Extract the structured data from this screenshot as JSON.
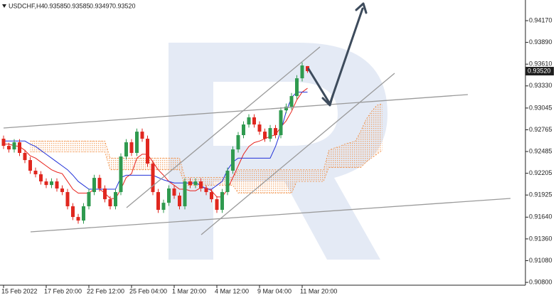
{
  "chart_data": {
    "type": "candlestick",
    "symbol": "USDCHF,H4",
    "header_values": [
      "0.93585",
      "0.93585",
      "0.93497",
      "0.93520"
    ],
    "categories": [
      "15 Feb 2022",
      null,
      null,
      null,
      null,
      null,
      null,
      null,
      "17 Feb 20:00",
      null,
      null,
      null,
      null,
      null,
      null,
      null,
      "22 Feb 12:00",
      null,
      null,
      null,
      null,
      null,
      null,
      null,
      "25 Feb 04:00",
      null,
      null,
      null,
      null,
      null,
      null,
      null,
      "1 Mar 20:00",
      null,
      null,
      null,
      null,
      null,
      null,
      null,
      "4 Mar 12:00",
      null,
      null,
      null,
      null,
      null,
      null,
      null,
      "9 Mar 04:00",
      null,
      null,
      null,
      null,
      null,
      null,
      null,
      "11 Mar 20:00",
      null,
      null,
      null,
      null,
      null,
      null,
      null,
      null,
      null,
      null,
      null,
      null,
      null,
      null,
      null
    ],
    "open": [
      0.9265,
      0.92558,
      0.92512,
      0.92604,
      0.92467,
      0.92375,
      0.92238,
      0.92192,
      0.921,
      0.92054,
      0.921,
      0.92009,
      0.91963,
      0.9178,
      0.91642,
      0.91596,
      0.9178,
      0.91963,
      0.92146,
      0.92009,
      0.91871,
      0.9178,
      0.91963,
      0.92421,
      0.92604,
      0.92467,
      0.92741,
      0.9265,
      0.92329,
      0.91963,
      0.91734,
      0.91825,
      0.92009,
      0.91917,
      0.9178,
      0.921,
      0.92054,
      0.921,
      0.92009,
      0.91963,
      0.91871,
      0.91734,
      0.91963,
      0.92238,
      0.92512,
      0.92696,
      0.92833,
      0.92925,
      0.92833,
      0.92741,
      0.9265,
      0.92787,
      0.92696,
      0.93016,
      0.93062,
      0.93199,
      0.93428,
      0.93585,
      null,
      null,
      null,
      null,
      null,
      null,
      null,
      null,
      null,
      null,
      null,
      null,
      null,
      null
    ],
    "high": [
      0.9269,
      0.92598,
      0.92644,
      0.92644,
      0.92507,
      0.92415,
      0.92278,
      0.92232,
      0.9214,
      0.9214,
      0.9214,
      0.92049,
      0.92003,
      0.9182,
      0.91682,
      0.9182,
      0.92003,
      0.92186,
      0.92186,
      0.92049,
      0.91911,
      0.92003,
      0.92461,
      0.92644,
      0.92644,
      0.92781,
      0.92781,
      0.9269,
      0.92369,
      0.92003,
      0.91865,
      0.92049,
      0.92049,
      0.91957,
      0.9214,
      0.9214,
      0.9214,
      0.9214,
      0.92049,
      0.92003,
      0.91911,
      0.92003,
      0.92278,
      0.92552,
      0.92736,
      0.92873,
      0.92965,
      0.92965,
      0.92873,
      0.92781,
      0.92827,
      0.92827,
      0.93056,
      0.93102,
      0.93239,
      0.93468,
      0.93633,
      0.93585,
      null,
      null,
      null,
      null,
      null,
      null,
      null,
      null,
      null,
      null,
      null,
      null,
      null,
      null
    ],
    "low": [
      0.92518,
      0.92472,
      0.92472,
      0.92427,
      0.92335,
      0.92198,
      0.92152,
      0.9206,
      0.92014,
      0.92014,
      0.91969,
      0.91923,
      0.9174,
      0.91602,
      0.91556,
      0.91556,
      0.9174,
      0.91923,
      0.91969,
      0.91831,
      0.9174,
      0.9174,
      0.91923,
      0.92381,
      0.92427,
      0.92427,
      0.9261,
      0.92289,
      0.91923,
      0.91694,
      0.91694,
      0.91785,
      0.91877,
      0.9174,
      0.9174,
      0.92014,
      0.92014,
      0.91969,
      0.91923,
      0.91831,
      0.91694,
      0.91694,
      0.91923,
      0.92198,
      0.92472,
      0.92656,
      0.92793,
      0.92793,
      0.92701,
      0.9261,
      0.9261,
      0.92656,
      0.92656,
      0.92976,
      0.93022,
      0.93159,
      0.93388,
      0.93497,
      null,
      null,
      null,
      null,
      null,
      null,
      null,
      null,
      null,
      null,
      null,
      null,
      null,
      null
    ],
    "close": [
      0.92558,
      0.92512,
      0.92604,
      0.92467,
      0.92375,
      0.92238,
      0.92192,
      0.921,
      0.92054,
      0.921,
      0.92009,
      0.91963,
      0.9178,
      0.91642,
      0.91596,
      0.9178,
      0.91963,
      0.92146,
      0.92009,
      0.91871,
      0.9178,
      0.91963,
      0.92421,
      0.92604,
      0.92467,
      0.92741,
      0.9265,
      0.92329,
      0.91963,
      0.91734,
      0.91825,
      0.92009,
      0.91917,
      0.9178,
      0.921,
      0.92054,
      0.921,
      0.92009,
      0.91963,
      0.91871,
      0.91734,
      0.91963,
      0.92238,
      0.92512,
      0.92696,
      0.92833,
      0.92925,
      0.92833,
      0.92741,
      0.9265,
      0.92787,
      0.92696,
      0.93016,
      0.93062,
      0.93199,
      0.93428,
      0.93593,
      0.9352,
      null,
      null,
      null,
      null,
      null,
      null,
      null,
      null,
      null,
      null,
      null,
      null,
      null,
      null
    ],
    "up_color": "#2f9a4f",
    "down_color": "#e0271f",
    "lines": [
      {
        "color": "#e8231c",
        "values": [
          0.9258,
          0.9258,
          0.9256,
          0.9255,
          0.925,
          0.9243,
          0.924,
          0.9235,
          0.923,
          0.9225,
          0.9222,
          0.922,
          0.921,
          0.92,
          0.9195,
          0.9195,
          0.9195,
          0.92,
          0.92,
          0.9195,
          0.9188,
          0.9188,
          0.92,
          0.9215,
          0.922,
          0.924,
          0.9245,
          0.9245,
          0.9235,
          0.9225,
          0.9218,
          0.921,
          0.9205,
          0.92,
          0.92,
          0.9198,
          0.9198,
          0.9202,
          0.9202,
          0.9198,
          0.919,
          0.919,
          0.92,
          0.9215,
          0.923,
          0.9245,
          0.9255,
          0.926,
          0.9262,
          0.9265,
          0.9268,
          0.927,
          0.928,
          0.9288,
          0.93,
          0.9315,
          0.9325,
          0.933,
          null,
          null,
          null,
          null,
          null,
          null,
          null,
          null,
          null,
          null,
          null,
          null,
          null,
          null
        ]
      },
      {
        "color": "#2232d8",
        "values": [
          0.9262,
          0.9262,
          0.9262,
          0.9262,
          0.9262,
          0.9258,
          0.9255,
          0.925,
          0.9245,
          0.924,
          0.9235,
          0.923,
          0.9225,
          0.9218,
          0.921,
          0.9205,
          0.92,
          0.92,
          0.92,
          0.92,
          0.92,
          0.92,
          0.9215,
          0.9218,
          0.9218,
          0.9218,
          0.9218,
          0.9218,
          0.9218,
          0.9215,
          0.9212,
          0.921,
          0.9208,
          0.9208,
          0.9208,
          0.9208,
          0.9208,
          0.9205,
          0.92,
          0.92,
          0.9205,
          0.921,
          0.9225,
          0.9235,
          0.924,
          0.924,
          0.924,
          0.924,
          0.924,
          0.924,
          0.924,
          0.9255,
          0.9275,
          0.93,
          0.9318,
          0.9325,
          0.9325,
          0.9325,
          null,
          null,
          null,
          null,
          null,
          null,
          null,
          null,
          null,
          null,
          null,
          null,
          null,
          null
        ]
      }
    ],
    "cloud": {
      "color": "#f08a3c",
      "span_a": [
        null,
        null,
        null,
        null,
        null,
        0.9262,
        0.9262,
        0.9262,
        0.9262,
        0.9262,
        0.9262,
        0.9262,
        0.9262,
        0.9262,
        0.9262,
        0.9262,
        0.9262,
        0.9262,
        0.9262,
        0.9262,
        0.924,
        0.924,
        0.924,
        0.924,
        0.924,
        0.924,
        0.924,
        0.924,
        0.924,
        0.924,
        0.924,
        0.924,
        0.924,
        0.924,
        0.9215,
        0.9215,
        0.9215,
        0.9215,
        0.9215,
        0.9215,
        0.9215,
        0.9215,
        0.9215,
        0.9215,
        0.9225,
        0.9225,
        0.9225,
        0.9225,
        0.9225,
        0.9225,
        0.9225,
        0.9225,
        0.9225,
        0.9225,
        0.9225,
        0.9225,
        0.9225,
        0.9225,
        0.9225,
        0.9225,
        0.9225,
        0.925,
        0.9253,
        0.9255,
        0.9258,
        0.926,
        0.9262,
        0.9275,
        0.929,
        0.93,
        0.9308,
        0.931
      ],
      "span_b": [
        null,
        null,
        null,
        null,
        null,
        0.9248,
        0.9248,
        0.9248,
        0.9248,
        0.9248,
        0.9248,
        0.9248,
        0.9248,
        0.9248,
        0.9248,
        0.9248,
        0.9248,
        0.9248,
        0.9248,
        0.9248,
        0.9225,
        0.9225,
        0.9225,
        0.9225,
        0.9225,
        0.9225,
        0.9225,
        0.9225,
        0.9225,
        0.9225,
        0.9225,
        0.9225,
        0.9225,
        0.9225,
        0.9205,
        0.9205,
        0.9205,
        0.9205,
        0.9205,
        0.9205,
        0.9205,
        0.9205,
        0.9205,
        0.9205,
        0.9195,
        0.9195,
        0.9195,
        0.9195,
        0.9195,
        0.9195,
        0.9195,
        0.9195,
        0.9195,
        0.9195,
        0.9195,
        0.921,
        0.921,
        0.921,
        0.921,
        0.921,
        0.921,
        0.9228,
        0.9228,
        0.9228,
        0.9228,
        0.9228,
        0.9228,
        0.9228,
        0.9235,
        0.924,
        0.9245,
        0.925
      ]
    },
    "ylim": [
      0.90773,
      0.94436
    ],
    "yticks": [
      {
        "value": 0.9417,
        "label": "0.94170"
      },
      {
        "value": 0.9389,
        "label": "0.93890"
      },
      {
        "value": 0.9361,
        "label": "0.93610"
      },
      {
        "value": 0.9333,
        "label": "0.93330"
      },
      {
        "value": 0.93045,
        "label": "0.93045"
      },
      {
        "value": 0.92765,
        "label": "0.92765"
      },
      {
        "value": 0.92485,
        "label": "0.92485"
      },
      {
        "value": 0.92205,
        "label": "0.92205"
      },
      {
        "value": 0.91925,
        "label": "0.91925"
      },
      {
        "value": 0.9164,
        "label": "0.91640"
      },
      {
        "value": 0.9136,
        "label": "0.91360"
      },
      {
        "value": 0.9108,
        "label": "0.91080"
      },
      {
        "value": 0.908,
        "label": "0.90800"
      }
    ],
    "last_price": {
      "value": 0.9352,
      "label": "0.93520"
    }
  }
}
